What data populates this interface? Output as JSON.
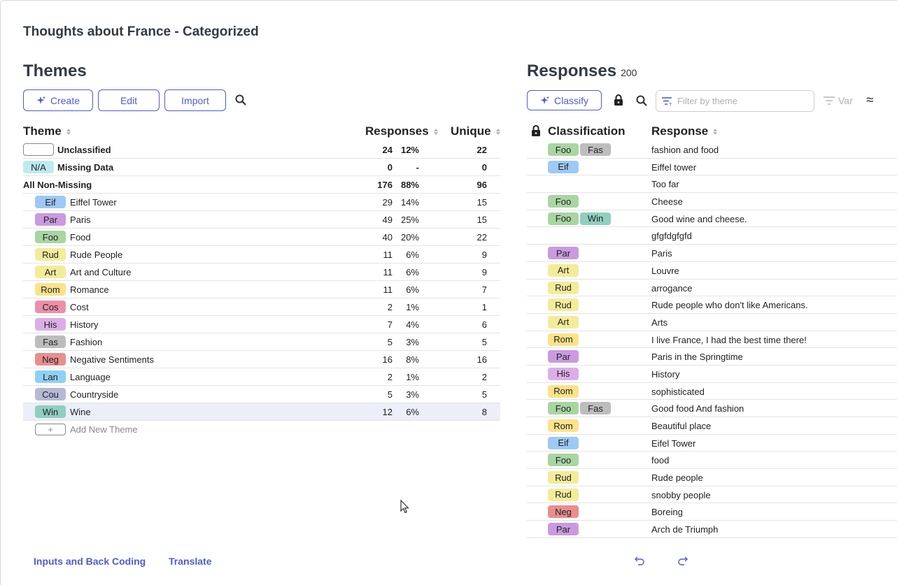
{
  "title": "Thoughts about France - Categorized",
  "themes": {
    "heading": "Themes",
    "buttons": {
      "create": "Create",
      "edit": "Edit",
      "import": "Import"
    },
    "columns": {
      "theme": "Theme",
      "responses": "Responses",
      "unique": "Unique"
    },
    "special_rows": [
      {
        "code": "",
        "name": "Unclassified",
        "responses": "24",
        "pct": "12%",
        "unique": "22"
      },
      {
        "code": "N/A",
        "name": "Missing Data",
        "responses": "0",
        "pct": "-",
        "unique": "0"
      },
      {
        "code": "",
        "name": "All Non-Missing",
        "responses": "176",
        "pct": "88%",
        "unique": "96"
      }
    ],
    "rows": [
      {
        "code": "Eif",
        "name": "Eiffel Tower",
        "responses": "29",
        "pct": "14%",
        "unique": "15"
      },
      {
        "code": "Par",
        "name": "Paris",
        "responses": "49",
        "pct": "25%",
        "unique": "15"
      },
      {
        "code": "Foo",
        "name": "Food",
        "responses": "40",
        "pct": "20%",
        "unique": "22"
      },
      {
        "code": "Rud",
        "name": "Rude People",
        "responses": "11",
        "pct": "6%",
        "unique": "9"
      },
      {
        "code": "Art",
        "name": "Art and Culture",
        "responses": "11",
        "pct": "6%",
        "unique": "9"
      },
      {
        "code": "Rom",
        "name": "Romance",
        "responses": "11",
        "pct": "6%",
        "unique": "7"
      },
      {
        "code": "Cos",
        "name": "Cost",
        "responses": "2",
        "pct": "1%",
        "unique": "1"
      },
      {
        "code": "His",
        "name": "History",
        "responses": "7",
        "pct": "4%",
        "unique": "6"
      },
      {
        "code": "Fas",
        "name": "Fashion",
        "responses": "5",
        "pct": "3%",
        "unique": "5"
      },
      {
        "code": "Neg",
        "name": "Negative Sentiments",
        "responses": "16",
        "pct": "8%",
        "unique": "16"
      },
      {
        "code": "Lan",
        "name": "Language",
        "responses": "2",
        "pct": "1%",
        "unique": "2"
      },
      {
        "code": "Cou",
        "name": "Countryside",
        "responses": "5",
        "pct": "3%",
        "unique": "5"
      },
      {
        "code": "Win",
        "name": "Wine",
        "responses": "12",
        "pct": "6%",
        "unique": "8"
      }
    ],
    "add_new_label": "Add New Theme",
    "add_new_icon": "+"
  },
  "responses": {
    "heading": "Responses",
    "count": "200",
    "classify_label": "Classify",
    "filter_placeholder": "Filter by theme",
    "var_label": "Var",
    "approx_symbol": "≈",
    "columns": {
      "classification": "Classification",
      "response": "Response"
    },
    "rows": [
      {
        "codes": [
          "Foo",
          "Fas"
        ],
        "text": "fashion and food"
      },
      {
        "codes": [
          "Eif"
        ],
        "text": "Eiffel tower"
      },
      {
        "codes": [],
        "text": "Too far"
      },
      {
        "codes": [
          "Foo"
        ],
        "text": "Cheese"
      },
      {
        "codes": [
          "Foo",
          "Win"
        ],
        "text": "Good wine and cheese."
      },
      {
        "codes": [],
        "text": "gfgfdgfgfd"
      },
      {
        "codes": [
          "Par"
        ],
        "text": "Paris"
      },
      {
        "codes": [
          "Art"
        ],
        "text": "Louvre"
      },
      {
        "codes": [
          "Rud"
        ],
        "text": "arrogance"
      },
      {
        "codes": [
          "Rud"
        ],
        "text": "Rude people who don't like Americans."
      },
      {
        "codes": [
          "Art"
        ],
        "text": "Arts"
      },
      {
        "codes": [
          "Rom"
        ],
        "text": "I live France, I had the best time there!"
      },
      {
        "codes": [
          "Par"
        ],
        "text": "Paris in the Springtime"
      },
      {
        "codes": [
          "His"
        ],
        "text": "History"
      },
      {
        "codes": [
          "Rom"
        ],
        "text": "sophisticated"
      },
      {
        "codes": [
          "Foo",
          "Fas"
        ],
        "text": "Good food And fashion"
      },
      {
        "codes": [
          "Rom"
        ],
        "text": "Beautiful place"
      },
      {
        "codes": [
          "Eif"
        ],
        "text": "Eifel Tower"
      },
      {
        "codes": [
          "Foo"
        ],
        "text": "food"
      },
      {
        "codes": [
          "Rud"
        ],
        "text": "Rude people"
      },
      {
        "codes": [
          "Rud"
        ],
        "text": "snobby people"
      },
      {
        "codes": [
          "Neg"
        ],
        "text": "Boreing"
      },
      {
        "codes": [
          "Par"
        ],
        "text": "Arch de Triumph"
      }
    ]
  },
  "footer": {
    "inputs_link": "Inputs and Back Coding",
    "translate_link": "Translate"
  },
  "colors": {
    "accent": "#4f5bd5",
    "Eif": "#9dc9f5",
    "Par": "#c99ae0",
    "Foo": "#a8d5a2",
    "Rud": "#f2ec9a",
    "Art": "#f2ec9a",
    "Rom": "#fce28a",
    "Cos": "#ec8fa8",
    "His": "#dcaee8",
    "Fas": "#bdbdbd",
    "Neg": "#e88e8e",
    "Lan": "#8fd0f5",
    "Cou": "#b6b9d6",
    "Win": "#8fcfc0",
    "N/A": "#bfeaf0"
  }
}
